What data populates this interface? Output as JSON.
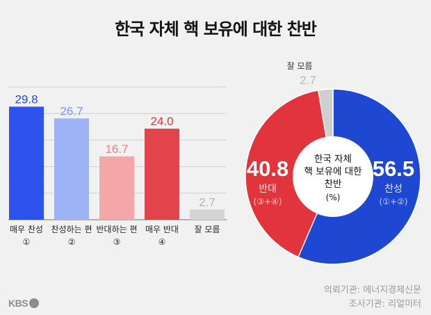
{
  "title": "한국 자체 핵 보유에 대한 찬반",
  "chart_data": [
    {
      "type": "bar",
      "categories": [
        "매우 찬성",
        "찬성하는 편",
        "반대하는 편",
        "매우 반대",
        "잘 모름"
      ],
      "category_marks": [
        "①",
        "②",
        "③",
        "④",
        ""
      ],
      "values": [
        29.8,
        26.7,
        16.7,
        24.0,
        2.7
      ],
      "value_labels": [
        "29.8",
        "26.7",
        "16.7",
        "24.0",
        "2.7"
      ],
      "colors": [
        "#2d52ee",
        "#9db3f6",
        "#f5a6a9",
        "#e3434b",
        "#d4d4d4"
      ],
      "label_colors": [
        "#2447e0",
        "#7d96ee",
        "#ef7f86",
        "#d8363e",
        "#b5b5b5"
      ],
      "ylim": [
        0,
        35
      ]
    },
    {
      "type": "pie",
      "center_label": [
        "한국 자체",
        "핵 보유에 대한",
        "찬반",
        "(%)"
      ],
      "slices": [
        {
          "name": "찬성",
          "sub": "(①+②)",
          "value": 56.5,
          "label": "56.5",
          "color": "#1f48d2"
        },
        {
          "name": "반대",
          "sub": "(③+④)",
          "value": 40.8,
          "label": "40.8",
          "color": "#e2343c"
        },
        {
          "name": "잘 모름",
          "sub": "",
          "value": 2.7,
          "label": "2.7",
          "color": "#cfcfcf"
        }
      ]
    }
  ],
  "footer": {
    "line1": "의뢰기관: 에너지경제신문",
    "line2": "조사기관: 리얼미터"
  },
  "logo": "KBS"
}
